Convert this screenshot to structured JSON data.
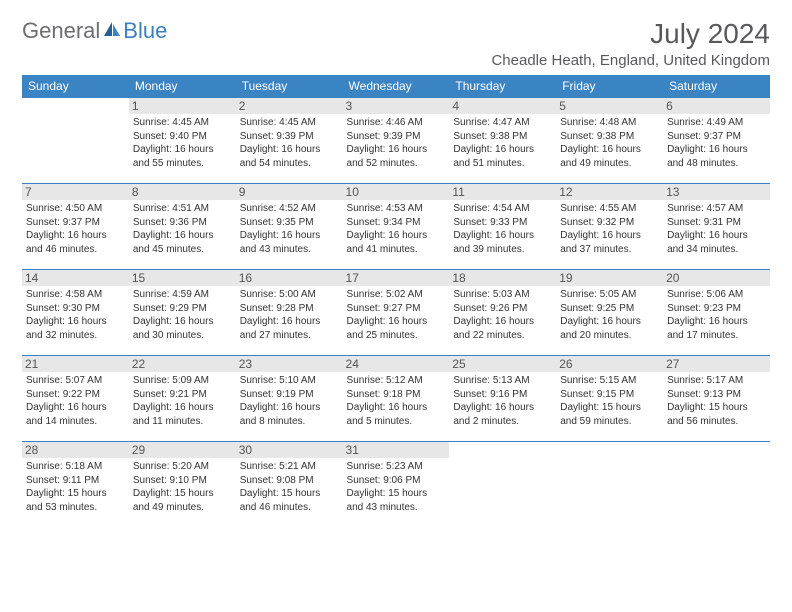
{
  "logo": {
    "general": "General",
    "blue": "Blue"
  },
  "title": "July 2024",
  "location": "Cheadle Heath, England, United Kingdom",
  "colors": {
    "header_bg": "#3b84c4",
    "header_text": "#ffffff",
    "border": "#3b7fc4",
    "daynum_bg": "#e7e7e7",
    "logo_gray": "#6d6e71",
    "logo_blue": "#3b7fc4",
    "text": "#333333",
    "title_color": "#58595b"
  },
  "weekdays": [
    "Sunday",
    "Monday",
    "Tuesday",
    "Wednesday",
    "Thursday",
    "Friday",
    "Saturday"
  ],
  "weeks": [
    [
      null,
      {
        "n": "1",
        "sr": "Sunrise: 4:45 AM",
        "ss": "Sunset: 9:40 PM",
        "d1": "Daylight: 16 hours",
        "d2": "and 55 minutes."
      },
      {
        "n": "2",
        "sr": "Sunrise: 4:45 AM",
        "ss": "Sunset: 9:39 PM",
        "d1": "Daylight: 16 hours",
        "d2": "and 54 minutes."
      },
      {
        "n": "3",
        "sr": "Sunrise: 4:46 AM",
        "ss": "Sunset: 9:39 PM",
        "d1": "Daylight: 16 hours",
        "d2": "and 52 minutes."
      },
      {
        "n": "4",
        "sr": "Sunrise: 4:47 AM",
        "ss": "Sunset: 9:38 PM",
        "d1": "Daylight: 16 hours",
        "d2": "and 51 minutes."
      },
      {
        "n": "5",
        "sr": "Sunrise: 4:48 AM",
        "ss": "Sunset: 9:38 PM",
        "d1": "Daylight: 16 hours",
        "d2": "and 49 minutes."
      },
      {
        "n": "6",
        "sr": "Sunrise: 4:49 AM",
        "ss": "Sunset: 9:37 PM",
        "d1": "Daylight: 16 hours",
        "d2": "and 48 minutes."
      }
    ],
    [
      {
        "n": "7",
        "sr": "Sunrise: 4:50 AM",
        "ss": "Sunset: 9:37 PM",
        "d1": "Daylight: 16 hours",
        "d2": "and 46 minutes."
      },
      {
        "n": "8",
        "sr": "Sunrise: 4:51 AM",
        "ss": "Sunset: 9:36 PM",
        "d1": "Daylight: 16 hours",
        "d2": "and 45 minutes."
      },
      {
        "n": "9",
        "sr": "Sunrise: 4:52 AM",
        "ss": "Sunset: 9:35 PM",
        "d1": "Daylight: 16 hours",
        "d2": "and 43 minutes."
      },
      {
        "n": "10",
        "sr": "Sunrise: 4:53 AM",
        "ss": "Sunset: 9:34 PM",
        "d1": "Daylight: 16 hours",
        "d2": "and 41 minutes."
      },
      {
        "n": "11",
        "sr": "Sunrise: 4:54 AM",
        "ss": "Sunset: 9:33 PM",
        "d1": "Daylight: 16 hours",
        "d2": "and 39 minutes."
      },
      {
        "n": "12",
        "sr": "Sunrise: 4:55 AM",
        "ss": "Sunset: 9:32 PM",
        "d1": "Daylight: 16 hours",
        "d2": "and 37 minutes."
      },
      {
        "n": "13",
        "sr": "Sunrise: 4:57 AM",
        "ss": "Sunset: 9:31 PM",
        "d1": "Daylight: 16 hours",
        "d2": "and 34 minutes."
      }
    ],
    [
      {
        "n": "14",
        "sr": "Sunrise: 4:58 AM",
        "ss": "Sunset: 9:30 PM",
        "d1": "Daylight: 16 hours",
        "d2": "and 32 minutes."
      },
      {
        "n": "15",
        "sr": "Sunrise: 4:59 AM",
        "ss": "Sunset: 9:29 PM",
        "d1": "Daylight: 16 hours",
        "d2": "and 30 minutes."
      },
      {
        "n": "16",
        "sr": "Sunrise: 5:00 AM",
        "ss": "Sunset: 9:28 PM",
        "d1": "Daylight: 16 hours",
        "d2": "and 27 minutes."
      },
      {
        "n": "17",
        "sr": "Sunrise: 5:02 AM",
        "ss": "Sunset: 9:27 PM",
        "d1": "Daylight: 16 hours",
        "d2": "and 25 minutes."
      },
      {
        "n": "18",
        "sr": "Sunrise: 5:03 AM",
        "ss": "Sunset: 9:26 PM",
        "d1": "Daylight: 16 hours",
        "d2": "and 22 minutes."
      },
      {
        "n": "19",
        "sr": "Sunrise: 5:05 AM",
        "ss": "Sunset: 9:25 PM",
        "d1": "Daylight: 16 hours",
        "d2": "and 20 minutes."
      },
      {
        "n": "20",
        "sr": "Sunrise: 5:06 AM",
        "ss": "Sunset: 9:23 PM",
        "d1": "Daylight: 16 hours",
        "d2": "and 17 minutes."
      }
    ],
    [
      {
        "n": "21",
        "sr": "Sunrise: 5:07 AM",
        "ss": "Sunset: 9:22 PM",
        "d1": "Daylight: 16 hours",
        "d2": "and 14 minutes."
      },
      {
        "n": "22",
        "sr": "Sunrise: 5:09 AM",
        "ss": "Sunset: 9:21 PM",
        "d1": "Daylight: 16 hours",
        "d2": "and 11 minutes."
      },
      {
        "n": "23",
        "sr": "Sunrise: 5:10 AM",
        "ss": "Sunset: 9:19 PM",
        "d1": "Daylight: 16 hours",
        "d2": "and 8 minutes."
      },
      {
        "n": "24",
        "sr": "Sunrise: 5:12 AM",
        "ss": "Sunset: 9:18 PM",
        "d1": "Daylight: 16 hours",
        "d2": "and 5 minutes."
      },
      {
        "n": "25",
        "sr": "Sunrise: 5:13 AM",
        "ss": "Sunset: 9:16 PM",
        "d1": "Daylight: 16 hours",
        "d2": "and 2 minutes."
      },
      {
        "n": "26",
        "sr": "Sunrise: 5:15 AM",
        "ss": "Sunset: 9:15 PM",
        "d1": "Daylight: 15 hours",
        "d2": "and 59 minutes."
      },
      {
        "n": "27",
        "sr": "Sunrise: 5:17 AM",
        "ss": "Sunset: 9:13 PM",
        "d1": "Daylight: 15 hours",
        "d2": "and 56 minutes."
      }
    ],
    [
      {
        "n": "28",
        "sr": "Sunrise: 5:18 AM",
        "ss": "Sunset: 9:11 PM",
        "d1": "Daylight: 15 hours",
        "d2": "and 53 minutes."
      },
      {
        "n": "29",
        "sr": "Sunrise: 5:20 AM",
        "ss": "Sunset: 9:10 PM",
        "d1": "Daylight: 15 hours",
        "d2": "and 49 minutes."
      },
      {
        "n": "30",
        "sr": "Sunrise: 5:21 AM",
        "ss": "Sunset: 9:08 PM",
        "d1": "Daylight: 15 hours",
        "d2": "and 46 minutes."
      },
      {
        "n": "31",
        "sr": "Sunrise: 5:23 AM",
        "ss": "Sunset: 9:06 PM",
        "d1": "Daylight: 15 hours",
        "d2": "and 43 minutes."
      },
      null,
      null,
      null
    ]
  ]
}
